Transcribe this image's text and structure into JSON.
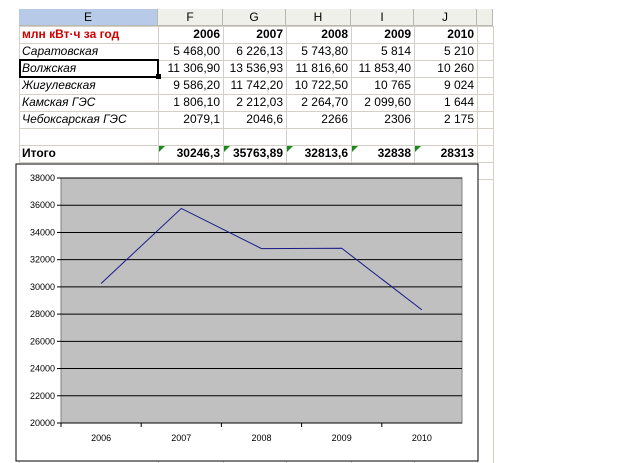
{
  "columns": [
    {
      "id": "E",
      "selected": true
    },
    {
      "id": "F",
      "selected": false
    },
    {
      "id": "G",
      "selected": false
    },
    {
      "id": "H",
      "selected": false
    },
    {
      "id": "I",
      "selected": false
    },
    {
      "id": "J",
      "selected": false
    }
  ],
  "sheet": {
    "header_label": "млн кВт·ч за год",
    "years": [
      "2006",
      "2007",
      "2008",
      "2009",
      "2010"
    ],
    "rows": [
      {
        "name": "Саратовская",
        "values": [
          "5 468,00",
          "6 226,13",
          "5 743,80",
          "5 814",
          "5 210"
        ]
      },
      {
        "name": "Волжская",
        "values": [
          "11 306,90",
          "13 536,93",
          "11 816,60",
          "11 853,40",
          "10 260"
        ]
      },
      {
        "name": "Жигулевская",
        "values": [
          "9 586,20",
          "11 742,20",
          "10 722,50",
          "10 765",
          "9 024"
        ]
      },
      {
        "name": "Камская ГЭС",
        "values": [
          "1 806,10",
          "2 212,03",
          "2 264,70",
          "2 099,60",
          "1 644"
        ]
      },
      {
        "name": "Чебоксарская ГЭС",
        "values": [
          "2079,1",
          "2046,6",
          "2266",
          "2306",
          "2 175"
        ]
      }
    ],
    "total_label": "Итого",
    "totals": [
      "30246,3",
      "35763,89",
      "32813,6",
      "32838",
      "28313"
    ]
  },
  "colors": {
    "header_red": "#d00000",
    "plot_area": "#c0c0c0",
    "series_line": "#1a1a8a",
    "selection_header": "#b7cbe8",
    "error_triangle": "#1a8a1a"
  },
  "chart_data": {
    "type": "line",
    "categories": [
      "2006",
      "2007",
      "2008",
      "2009",
      "2010"
    ],
    "series": [
      {
        "values": [
          30246.3,
          35763.89,
          32813.6,
          32838,
          28313
        ]
      }
    ],
    "ylim": [
      20000,
      38000
    ],
    "yticks": [
      "20000",
      "22000",
      "24000",
      "26000",
      "28000",
      "30000",
      "32000",
      "34000",
      "36000",
      "38000"
    ],
    "grid": true,
    "legend": "none"
  }
}
